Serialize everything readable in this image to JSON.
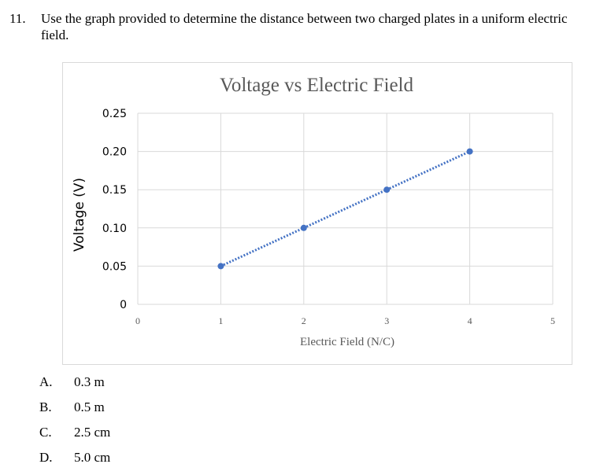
{
  "question": {
    "number": "11.",
    "text": "Use the graph provided to determine the distance between two charged plates in a uniform electric field."
  },
  "answers": [
    {
      "letter": "A.",
      "text": "0.3 m"
    },
    {
      "letter": "B.",
      "text": "0.5 m"
    },
    {
      "letter": "C.",
      "text": "2.5 cm"
    },
    {
      "letter": "D.",
      "text": "5.0 cm"
    }
  ],
  "chart_data": {
    "type": "scatter",
    "title": "Voltage vs Electric Field",
    "xlabel": "Electric Field (N/C)",
    "ylabel": "Voltage (V)",
    "xlim": [
      0,
      5
    ],
    "ylim": [
      0,
      0.25
    ],
    "x_ticks": [
      "0",
      "1",
      "2",
      "3",
      "4",
      "5"
    ],
    "y_ticks": [
      "0",
      "0.05",
      "0.10",
      "0.15",
      "0.20",
      "0.25"
    ],
    "grid": true,
    "trendline": "linear",
    "color": "#4472c4",
    "points": [
      {
        "x": 1,
        "y": 0.05
      },
      {
        "x": 2,
        "y": 0.1
      },
      {
        "x": 3,
        "y": 0.15
      },
      {
        "x": 4,
        "y": 0.2
      }
    ]
  }
}
